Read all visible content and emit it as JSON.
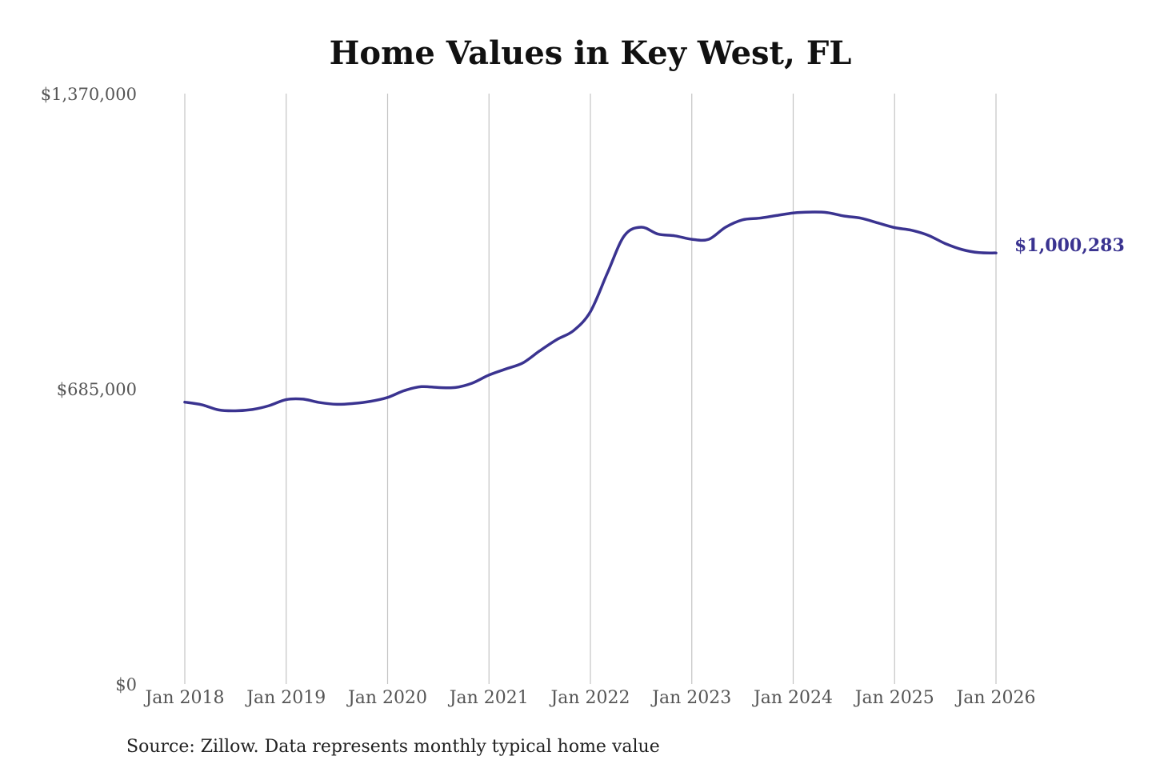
{
  "chart_data": {
    "type": "line",
    "title": "Home Values in Key West, FL",
    "xlabel": "",
    "ylabel": "",
    "ylim": [
      0,
      1370000
    ],
    "y_tick_values": [
      0,
      685000,
      1370000
    ],
    "y_tick_labels": [
      "$0",
      "$685,000",
      "$1,370,000"
    ],
    "x_tick_labels": [
      "Jan 2018",
      "Jan 2019",
      "Jan 2020",
      "Jan 2021",
      "Jan 2022",
      "Jan 2023",
      "Jan 2024",
      "Jan 2025",
      "Jan 2026"
    ],
    "x_tick_dates": [
      "2018-01",
      "2019-01",
      "2020-01",
      "2021-01",
      "2022-01",
      "2023-01",
      "2024-01",
      "2025-01",
      "2026-01"
    ],
    "grid": "vertical",
    "legend": "none",
    "series": [
      {
        "color": "#3a3390",
        "points": [
          [
            "2018-01",
            654000
          ],
          [
            "2018-03",
            648000
          ],
          [
            "2018-05",
            636000
          ],
          [
            "2018-07",
            634000
          ],
          [
            "2018-09",
            637000
          ],
          [
            "2018-11",
            646000
          ],
          [
            "2019-01",
            660000
          ],
          [
            "2019-03",
            661000
          ],
          [
            "2019-05",
            653000
          ],
          [
            "2019-07",
            649000
          ],
          [
            "2019-09",
            651000
          ],
          [
            "2019-11",
            656000
          ],
          [
            "2020-01",
            665000
          ],
          [
            "2020-03",
            681000
          ],
          [
            "2020-05",
            690000
          ],
          [
            "2020-07",
            688000
          ],
          [
            "2020-09",
            688000
          ],
          [
            "2020-11",
            698000
          ],
          [
            "2021-01",
            717000
          ],
          [
            "2021-03",
            731000
          ],
          [
            "2021-05",
            745000
          ],
          [
            "2021-07",
            773000
          ],
          [
            "2021-09",
            799000
          ],
          [
            "2021-11",
            820000
          ],
          [
            "2022-01",
            864000
          ],
          [
            "2022-03",
            953000
          ],
          [
            "2022-05",
            1040000
          ],
          [
            "2022-07",
            1060000
          ],
          [
            "2022-09",
            1044000
          ],
          [
            "2022-11",
            1040000
          ],
          [
            "2023-01",
            1032000
          ],
          [
            "2023-03",
            1032000
          ],
          [
            "2023-05",
            1060000
          ],
          [
            "2023-07",
            1077000
          ],
          [
            "2023-09",
            1081000
          ],
          [
            "2023-11",
            1087000
          ],
          [
            "2024-01",
            1093000
          ],
          [
            "2024-03",
            1095000
          ],
          [
            "2024-05",
            1094000
          ],
          [
            "2024-07",
            1086000
          ],
          [
            "2024-09",
            1081000
          ],
          [
            "2024-11",
            1070000
          ],
          [
            "2025-01",
            1059000
          ],
          [
            "2025-03",
            1053000
          ],
          [
            "2025-05",
            1041000
          ],
          [
            "2025-07",
            1022000
          ],
          [
            "2025-09",
            1008000
          ],
          [
            "2025-11",
            1001000
          ],
          [
            "2026-01",
            1000283
          ]
        ]
      }
    ],
    "end_label": "$1,000,283"
  },
  "source_note": "Source: Zillow. Data represents monthly typical home value"
}
